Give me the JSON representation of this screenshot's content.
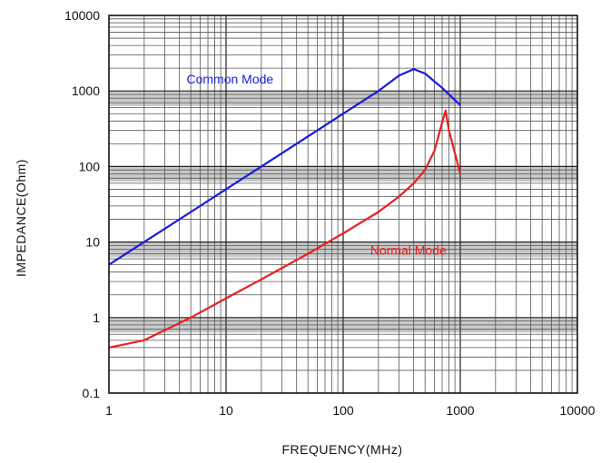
{
  "chart_data": {
    "type": "line",
    "xlabel": "FREQUENCY(MHz)",
    "ylabel": "IMPEDANCE(Ohm)",
    "x_scale": "log",
    "y_scale": "log",
    "xlim": [
      1,
      10000
    ],
    "ylim": [
      0.1,
      10000
    ],
    "x_ticks": [
      1,
      10,
      100,
      1000,
      10000
    ],
    "x_tick_labels": [
      "1",
      "10",
      "100",
      "1000",
      "10000"
    ],
    "y_ticks": [
      0.1,
      1,
      10,
      100,
      1000,
      10000
    ],
    "y_tick_labels": [
      "0.1",
      "1",
      "10",
      "100",
      "1000",
      "10000"
    ],
    "grid": true,
    "series": [
      {
        "name": "Common Mode",
        "color": "#1a1adf",
        "x": [
          1,
          2,
          5,
          10,
          20,
          50,
          100,
          200,
          300,
          400,
          500,
          700,
          1000
        ],
        "y": [
          5,
          10,
          25,
          50,
          100,
          250,
          500,
          1000,
          1600,
          1950,
          1700,
          1100,
          650
        ]
      },
      {
        "name": "Normal Mode",
        "color": "#e82020",
        "x": [
          1,
          2,
          5,
          10,
          20,
          50,
          100,
          200,
          300,
          400,
          500,
          600,
          700,
          750,
          800,
          900,
          1000
        ],
        "y": [
          0.4,
          0.5,
          1,
          1.8,
          3.2,
          7,
          13,
          25,
          40,
          60,
          90,
          160,
          380,
          550,
          300,
          150,
          80
        ]
      }
    ]
  }
}
